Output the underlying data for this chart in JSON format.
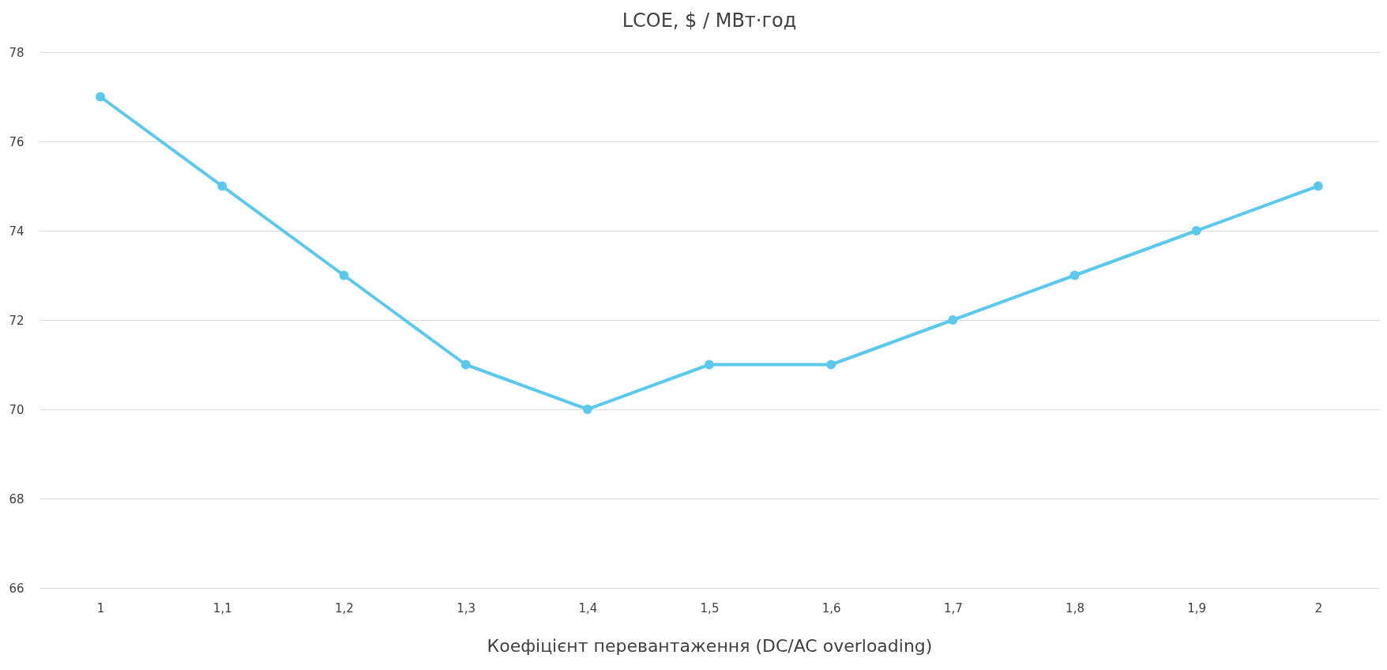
{
  "chart_data": {
    "type": "line",
    "title": "LCOE, $ / МВт·год",
    "xlabel": "Коефіцієнт перевантаження (DC/AC overloading)",
    "categories": [
      "1",
      "1,1",
      "1,2",
      "1,3",
      "1,4",
      "1,5",
      "1,6",
      "1,7",
      "1,8",
      "1,9",
      "2"
    ],
    "series": [
      {
        "color": "#5bc8ec",
        "values": [
          77,
          75,
          73,
          71,
          70,
          71,
          71,
          72,
          73,
          74,
          75
        ]
      }
    ],
    "ylim": [
      66,
      78
    ],
    "yticks": [
      66,
      68,
      70,
      72,
      74,
      76,
      78
    ],
    "grid": "y",
    "legend": false,
    "marker": "circle",
    "line_style": "solid"
  }
}
